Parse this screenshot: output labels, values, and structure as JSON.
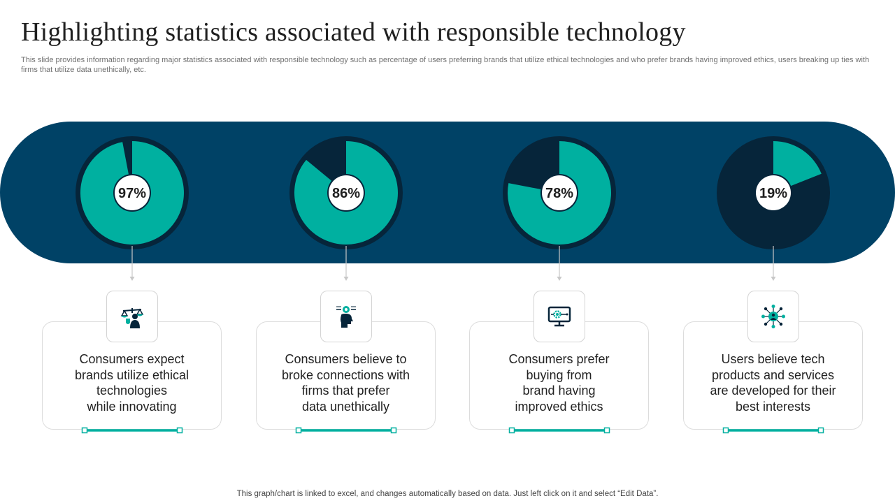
{
  "title": "Highlighting statistics associated with responsible technology",
  "subtitle": "This slide provides information regarding major statistics associated with responsible technology such as percentage of users preferring brands that utilize ethical technologies and who prefer brands having improved ethics, users breaking up ties with firms that utilize data unethically, etc.",
  "footer": "This graph/chart is linked to excel,  and changes automatically based on data. Just left click on it and select “Edit Data”.",
  "colors": {
    "band": "#004266",
    "accent": "#00B0A0",
    "dark": "#06253A"
  },
  "chart_data": {
    "type": "pie",
    "charts": [
      {
        "label": "97%",
        "value": 97,
        "icon": "ethics-scale-icon",
        "caption": "Consumers expect\nbrands utilize ethical\ntechnologies\nwhile innovating"
      },
      {
        "label": "86%",
        "value": 86,
        "icon": "ai-head-icon",
        "caption": "Consumers believe to\nbroke connections with\nfirms that prefer\ndata unethically"
      },
      {
        "label": "78%",
        "value": 78,
        "icon": "monitor-gear-icon",
        "caption": "Consumers prefer\nbuying from\nbrand having\nimproved ethics"
      },
      {
        "label": "19%",
        "value": 19,
        "icon": "user-network-icon",
        "caption": "Users believe tech\nproducts and services\nare developed for their\nbest interests"
      }
    ]
  }
}
